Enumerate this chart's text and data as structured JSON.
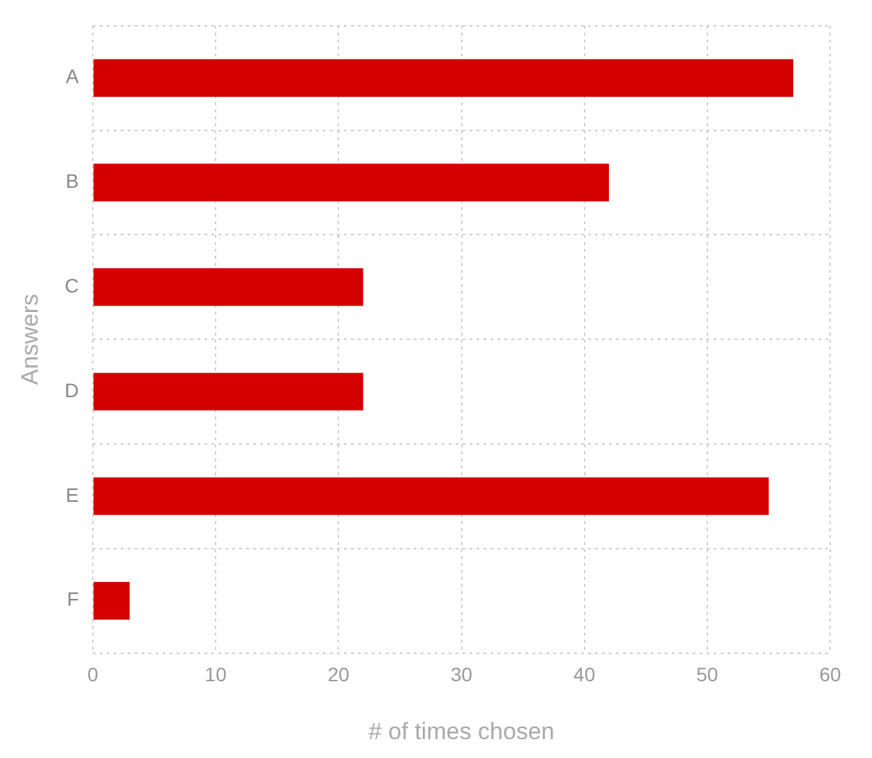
{
  "chart_data": {
    "type": "bar",
    "orientation": "horizontal",
    "xlabel": "# of times chosen",
    "ylabel": "Answers",
    "categories": [
      "A",
      "B",
      "C",
      "D",
      "E",
      "F"
    ],
    "values": [
      57,
      42,
      22,
      22,
      55,
      3
    ],
    "color": "#d40000",
    "xlim": [
      0,
      60
    ],
    "xticks": [
      0,
      10,
      20,
      30,
      40,
      50,
      60
    ],
    "grid": true,
    "legend": false
  }
}
